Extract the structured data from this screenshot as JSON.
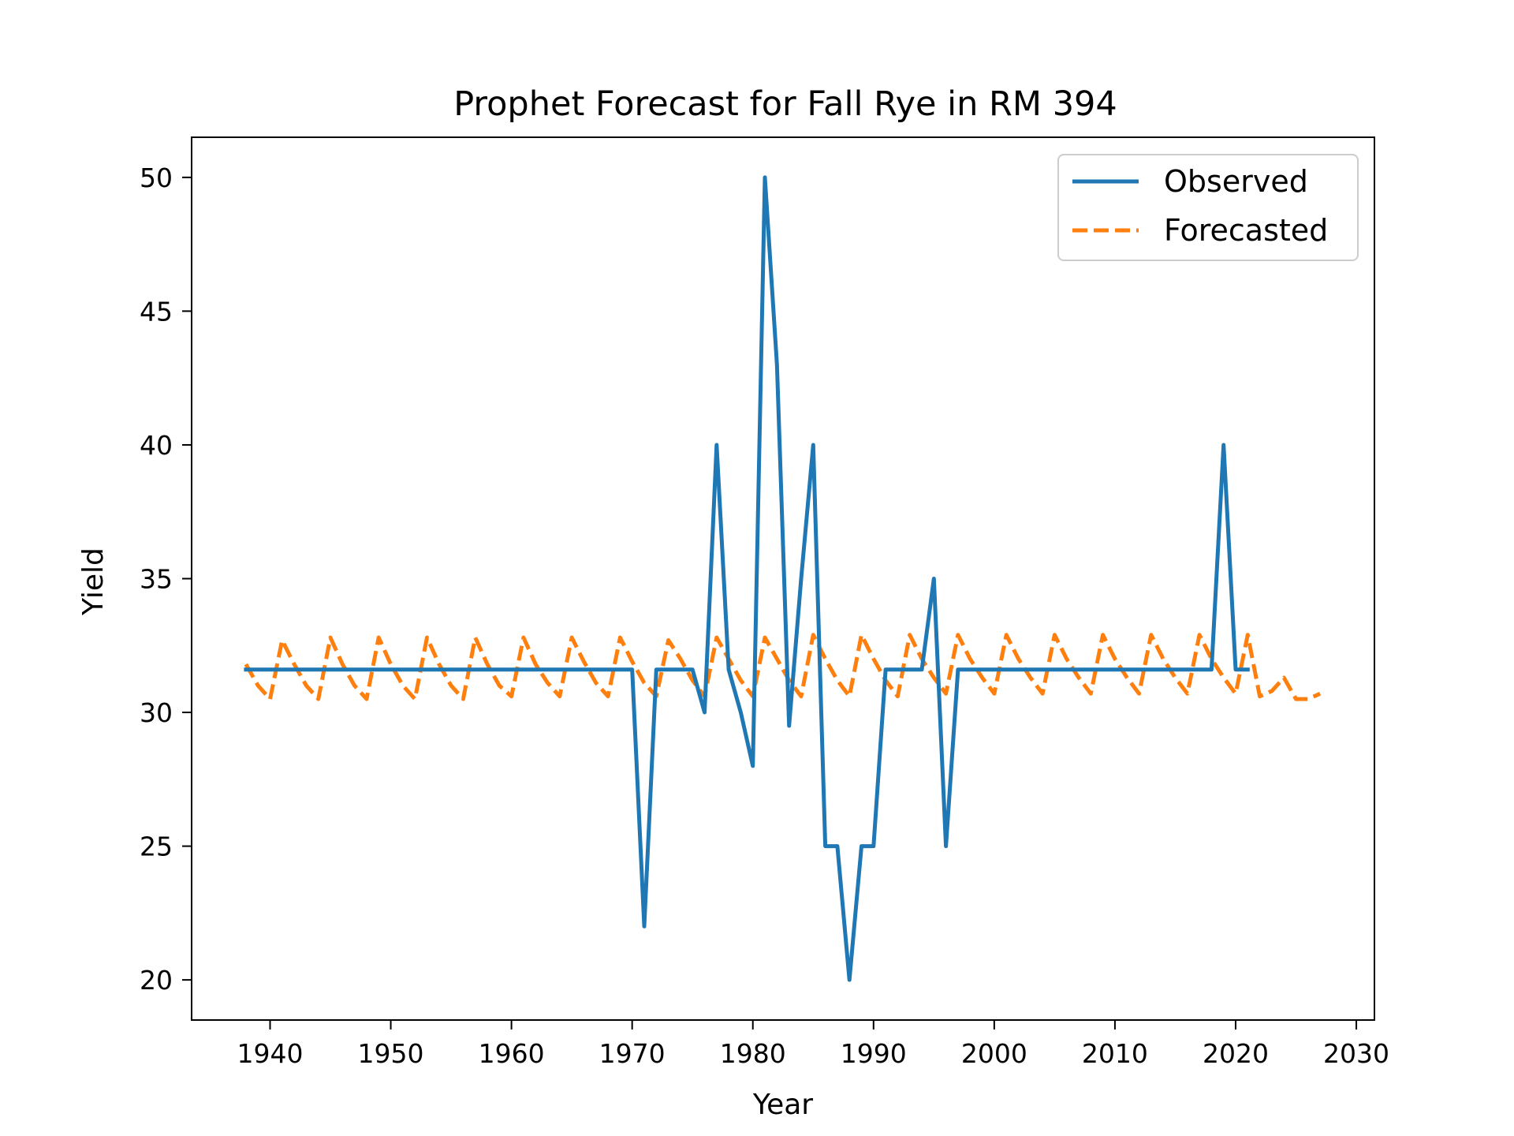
{
  "chart_data": {
    "type": "line",
    "title": "Prophet Forecast for Fall Rye in RM 394",
    "xlabel": "Year",
    "ylabel": "Yield",
    "xlim": [
      1933.5,
      2031.5
    ],
    "ylim": [
      18.5,
      51.5
    ],
    "xticks": [
      1940,
      1950,
      1960,
      1970,
      1980,
      1990,
      2000,
      2010,
      2020,
      2030
    ],
    "yticks": [
      20,
      25,
      30,
      35,
      40,
      45,
      50
    ],
    "grid": false,
    "legend_position": "top-right",
    "colors": {
      "observed": "#1f77b4",
      "forecasted": "#ff7f0e"
    },
    "series": [
      {
        "name": "Observed",
        "style": "solid",
        "x": [
          1938,
          1939,
          1940,
          1941,
          1942,
          1943,
          1944,
          1945,
          1946,
          1947,
          1948,
          1949,
          1950,
          1951,
          1952,
          1953,
          1954,
          1955,
          1956,
          1957,
          1958,
          1959,
          1960,
          1961,
          1962,
          1963,
          1964,
          1965,
          1966,
          1967,
          1968,
          1969,
          1970,
          1971,
          1972,
          1973,
          1974,
          1975,
          1976,
          1977,
          1978,
          1979,
          1980,
          1981,
          1982,
          1983,
          1984,
          1985,
          1986,
          1987,
          1988,
          1989,
          1990,
          1991,
          1992,
          1993,
          1994,
          1995,
          1996,
          1997,
          1998,
          1999,
          2000,
          2001,
          2002,
          2003,
          2004,
          2005,
          2006,
          2007,
          2008,
          2009,
          2010,
          2011,
          2012,
          2013,
          2014,
          2015,
          2016,
          2017,
          2018,
          2019,
          2020,
          2021
        ],
        "y": [
          31.6,
          31.6,
          31.6,
          31.6,
          31.6,
          31.6,
          31.6,
          31.6,
          31.6,
          31.6,
          31.6,
          31.6,
          31.6,
          31.6,
          31.6,
          31.6,
          31.6,
          31.6,
          31.6,
          31.6,
          31.6,
          31.6,
          31.6,
          31.6,
          31.6,
          31.6,
          31.6,
          31.6,
          31.6,
          31.6,
          31.6,
          31.6,
          31.6,
          22,
          31.6,
          31.6,
          31.6,
          31.6,
          30,
          40,
          31.6,
          30,
          28,
          50,
          43,
          29.5,
          35,
          40,
          25,
          25,
          20,
          25,
          25,
          31.6,
          31.6,
          31.6,
          31.6,
          35,
          25,
          31.6,
          31.6,
          31.6,
          31.6,
          31.6,
          31.6,
          31.6,
          31.6,
          31.6,
          31.6,
          31.6,
          31.6,
          31.6,
          31.6,
          31.6,
          31.6,
          31.6,
          31.6,
          31.6,
          31.6,
          31.6,
          31.6,
          40,
          31.6,
          31.6
        ]
      },
      {
        "name": "Forecasted",
        "style": "dashed",
        "x": [
          1938,
          1939,
          1940,
          1941,
          1942,
          1943,
          1944,
          1945,
          1946,
          1947,
          1948,
          1949,
          1950,
          1951,
          1952,
          1953,
          1954,
          1955,
          1956,
          1957,
          1958,
          1959,
          1960,
          1961,
          1962,
          1963,
          1964,
          1965,
          1966,
          1967,
          1968,
          1969,
          1970,
          1971,
          1972,
          1973,
          1974,
          1975,
          1976,
          1977,
          1978,
          1979,
          1980,
          1981,
          1982,
          1983,
          1984,
          1985,
          1986,
          1987,
          1988,
          1989,
          1990,
          1991,
          1992,
          1993,
          1994,
          1995,
          1996,
          1997,
          1998,
          1999,
          2000,
          2001,
          2002,
          2003,
          2004,
          2005,
          2006,
          2007,
          2008,
          2009,
          2010,
          2011,
          2012,
          2013,
          2014,
          2015,
          2016,
          2017,
          2018,
          2019,
          2020,
          2021,
          2022,
          2023,
          2024,
          2025,
          2026,
          2027
        ],
        "y": [
          31.8,
          31.0,
          30.5,
          32.7,
          31.8,
          31.0,
          30.5,
          32.8,
          31.8,
          31.0,
          30.5,
          32.8,
          31.8,
          31.0,
          30.5,
          32.8,
          31.8,
          31.0,
          30.5,
          32.8,
          31.8,
          31.0,
          30.6,
          32.8,
          31.8,
          31.1,
          30.6,
          32.8,
          31.9,
          31.1,
          30.6,
          32.8,
          31.9,
          31.1,
          30.6,
          32.7,
          32.0,
          31.2,
          30.6,
          32.8,
          32.0,
          31.2,
          30.6,
          32.8,
          32.0,
          31.2,
          30.6,
          32.9,
          32.0,
          31.2,
          30.6,
          32.9,
          32.0,
          31.2,
          30.6,
          32.9,
          32.0,
          31.3,
          30.7,
          32.9,
          32.0,
          31.3,
          30.7,
          32.9,
          32.0,
          31.3,
          30.7,
          32.9,
          32.0,
          31.3,
          30.7,
          32.9,
          32.0,
          31.3,
          30.7,
          32.9,
          32.0,
          31.3,
          30.7,
          32.9,
          32.0,
          31.3,
          30.7,
          32.9,
          30.6,
          30.8,
          31.3,
          30.5,
          30.5,
          30.7
        ]
      }
    ]
  }
}
